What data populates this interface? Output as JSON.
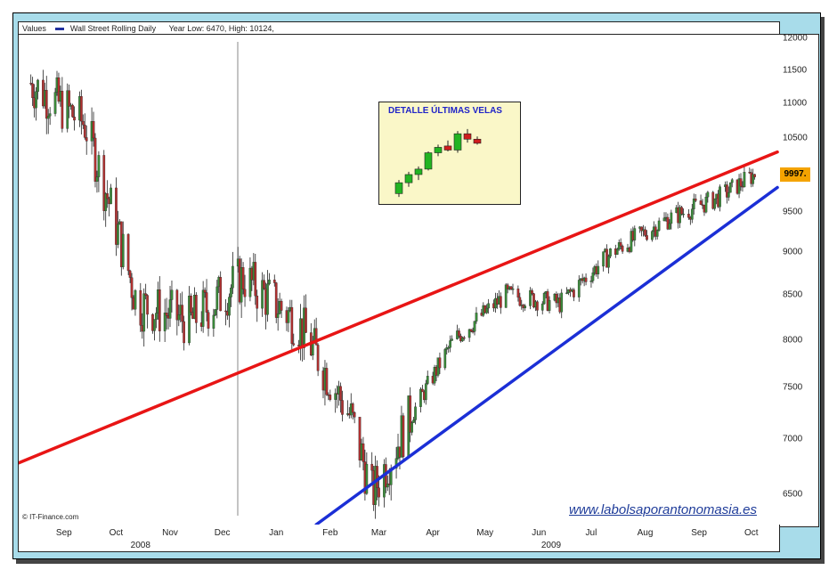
{
  "header": {
    "values_label": "Values",
    "series_name": "Wall Street Rolling Daily",
    "year_range": "Year Low: 6470, High: 10124,"
  },
  "colors": {
    "frame": "#a8dcea",
    "resistance_line": "#e81515",
    "support_line": "#1b2fd6",
    "up_candle_inset": "#22b422",
    "down_candle_inset": "#d01c1c",
    "price_tag": "#f4a300",
    "watermark": "#203d9a"
  },
  "inset": {
    "title": "DETALLE ÚLTIMAS VELAS"
  },
  "last_price": "9997.",
  "watermark": "www.labolsaporantonomasia.es",
  "source": "© IT-Finance.com",
  "chart_data": {
    "type": "candlestick",
    "title": "Wall Street Rolling Daily",
    "ylim": [
      6240,
      12060
    ],
    "yticks": [
      6500,
      7000,
      7500,
      8000,
      8500,
      9000,
      9500,
      10000,
      10500,
      11000,
      11500,
      12000
    ],
    "x_tick_labels": [
      "Sep",
      "Oct",
      "Nov",
      "Dec",
      "Jan",
      "Feb",
      "Mar",
      "Apr",
      "May",
      "Jun",
      "Jul",
      "Aug",
      "Sep",
      "Oct"
    ],
    "x_year_labels": [
      "2008",
      "2009"
    ],
    "grid": false,
    "closes_monthly": [
      {
        "x": "2008-08-25",
        "y": 11300
      },
      {
        "x": "2008-09-25",
        "y": 10700
      },
      {
        "x": "2008-10-25",
        "y": 8400
      },
      {
        "x": "2008-11-25",
        "y": 8200
      },
      {
        "x": "2008-12-25",
        "y": 8700
      },
      {
        "x": "2009-01-25",
        "y": 8200
      },
      {
        "x": "2009-02-25",
        "y": 7200
      },
      {
        "x": "2009-03-09",
        "y": 6500
      },
      {
        "x": "2009-04-25",
        "y": 8000
      },
      {
        "x": "2009-05-25",
        "y": 8500
      },
      {
        "x": "2009-06-25",
        "y": 8400
      },
      {
        "x": "2009-07-25",
        "y": 9000
      },
      {
        "x": "2009-08-25",
        "y": 9400
      },
      {
        "x": "2009-09-25",
        "y": 9700
      },
      {
        "x": "2009-10-15",
        "y": 9997
      }
    ],
    "trendlines": [
      {
        "name": "resistance",
        "color": "#e81515",
        "points": [
          {
            "x": "2008-08-18",
            "y": 6780
          },
          {
            "x": "2009-10-28",
            "y": 10300
          }
        ]
      },
      {
        "name": "support",
        "color": "#1b2fd6",
        "points": [
          {
            "x": "2009-02-05",
            "y": 6240
          },
          {
            "x": "2009-10-28",
            "y": 9820
          }
        ]
      }
    ],
    "inset_candles": [
      {
        "o": 10100,
        "h": 10300,
        "l": 10050,
        "c": 10260
      },
      {
        "o": 10260,
        "h": 10420,
        "l": 10200,
        "c": 10380
      },
      {
        "o": 10380,
        "h": 10500,
        "l": 10300,
        "c": 10460
      },
      {
        "o": 10460,
        "h": 10720,
        "l": 10440,
        "c": 10700
      },
      {
        "o": 10700,
        "h": 10820,
        "l": 10650,
        "c": 10780
      },
      {
        "o": 10800,
        "h": 10880,
        "l": 10720,
        "c": 10740
      },
      {
        "o": 10740,
        "h": 11020,
        "l": 10700,
        "c": 10980
      },
      {
        "o": 10980,
        "h": 11050,
        "l": 10850,
        "c": 10900
      },
      {
        "o": 10900,
        "h": 10940,
        "l": 10820,
        "c": 10840
      }
    ]
  }
}
